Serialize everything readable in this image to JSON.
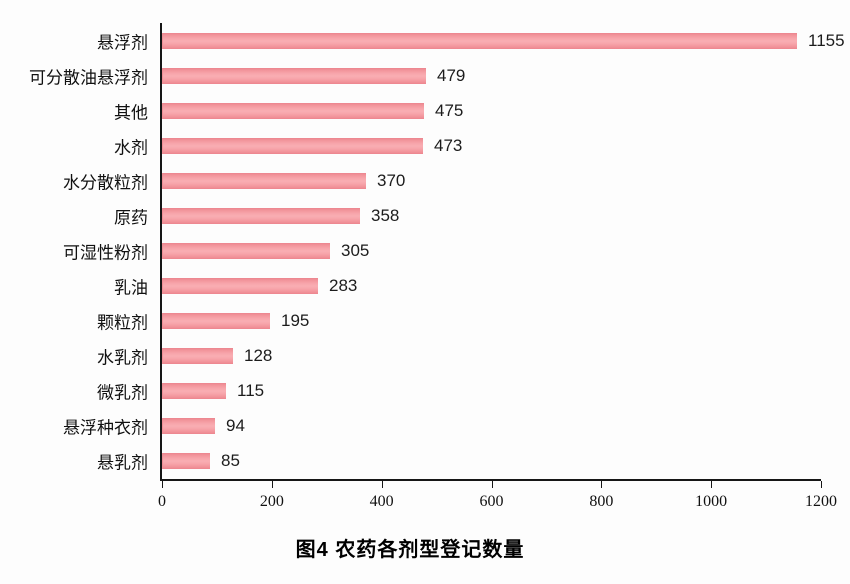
{
  "chart_data": {
    "type": "bar",
    "orientation": "horizontal",
    "title": "图4 农药各剂型登记数量",
    "categories": [
      "悬浮剂",
      "可分散油悬浮剂",
      "其他",
      "水剂",
      "水分散粒剂",
      "原药",
      "可湿性粉剂",
      "乳油",
      "颗粒剂",
      "水乳剂",
      "微乳剂",
      "悬浮种衣剂",
      "悬乳剂"
    ],
    "values": [
      1155,
      479,
      475,
      473,
      370,
      358,
      305,
      283,
      195,
      128,
      115,
      94,
      85
    ],
    "xlabel": "",
    "ylabel": "",
    "xlim": [
      0,
      1200
    ],
    "xticks": [
      0,
      200,
      400,
      600,
      800,
      1000,
      1200
    ],
    "grid": false,
    "legend": false,
    "value_labels_shown": true,
    "bar_fill_color": "#f59fa6",
    "bar_edge_color": "#ec858e",
    "axis_color": "#161616",
    "text_color": "#111111",
    "background_color": "#fdfdfd"
  }
}
